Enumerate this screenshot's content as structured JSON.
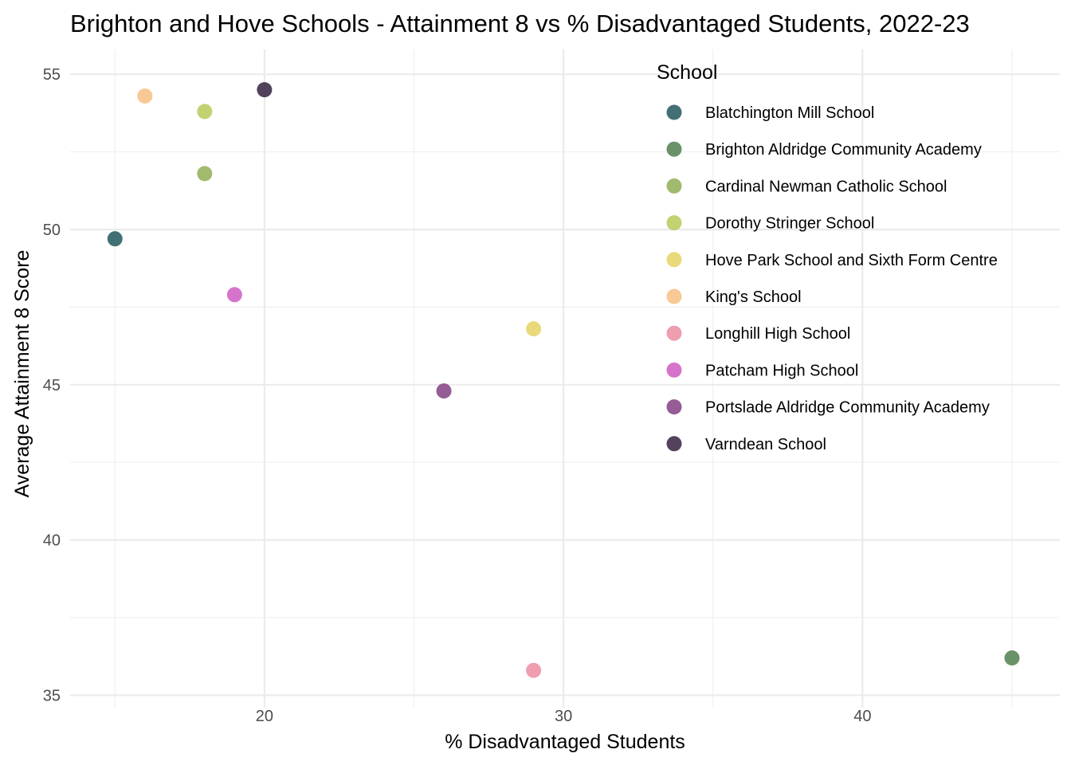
{
  "chart_data": {
    "type": "scatter",
    "title": "Brighton and Hove Schools - Attainment 8 vs % Disadvantaged Students, 2022-23",
    "xlabel": "% Disadvantaged Students",
    "ylabel": "Average Attainment 8 Score",
    "xlim": [
      13.5,
      46.6
    ],
    "ylim": [
      34.6,
      55.8
    ],
    "x_ticks": [
      20,
      30,
      40
    ],
    "x_minor_ticks": [
      15,
      25,
      35,
      45
    ],
    "y_ticks": [
      35,
      40,
      45,
      50,
      55
    ],
    "y_minor_ticks": [
      37.5,
      42.5,
      47.5,
      52.5
    ],
    "grid": true,
    "legend": {
      "title": "School",
      "placement": "right"
    },
    "series": [
      {
        "name": "Blatchington Mill School",
        "color": "#2d6165",
        "points": [
          {
            "x": 15,
            "y": 49.7
          }
        ]
      },
      {
        "name": "Brighton Aldridge Community Academy",
        "color": "#5a8659",
        "points": [
          {
            "x": 45,
            "y": 36.2
          }
        ]
      },
      {
        "name": "Cardinal Newman Catholic School",
        "color": "#97b35d",
        "points": [
          {
            "x": 18,
            "y": 51.8
          }
        ]
      },
      {
        "name": "Dorothy Stringer School",
        "color": "#bdcc62",
        "points": [
          {
            "x": 18,
            "y": 53.8
          }
        ]
      },
      {
        "name": "Hove Park School and Sixth Form Centre",
        "color": "#e6d66b",
        "points": [
          {
            "x": 29,
            "y": 46.8
          }
        ]
      },
      {
        "name": "King's School",
        "color": "#f7c388",
        "points": [
          {
            "x": 16,
            "y": 54.3
          }
        ]
      },
      {
        "name": "Longhill High School",
        "color": "#ec93a6",
        "points": [
          {
            "x": 29,
            "y": 35.8
          }
        ]
      },
      {
        "name": "Patcham High School",
        "color": "#d065c4",
        "points": [
          {
            "x": 19,
            "y": 47.9
          }
        ]
      },
      {
        "name": "Portslade Aldridge Community Academy",
        "color": "#8b4a8b",
        "points": [
          {
            "x": 26,
            "y": 44.8
          }
        ]
      },
      {
        "name": "Varndean School",
        "color": "#3f2d49",
        "points": [
          {
            "x": 20,
            "y": 54.5
          }
        ]
      }
    ]
  }
}
